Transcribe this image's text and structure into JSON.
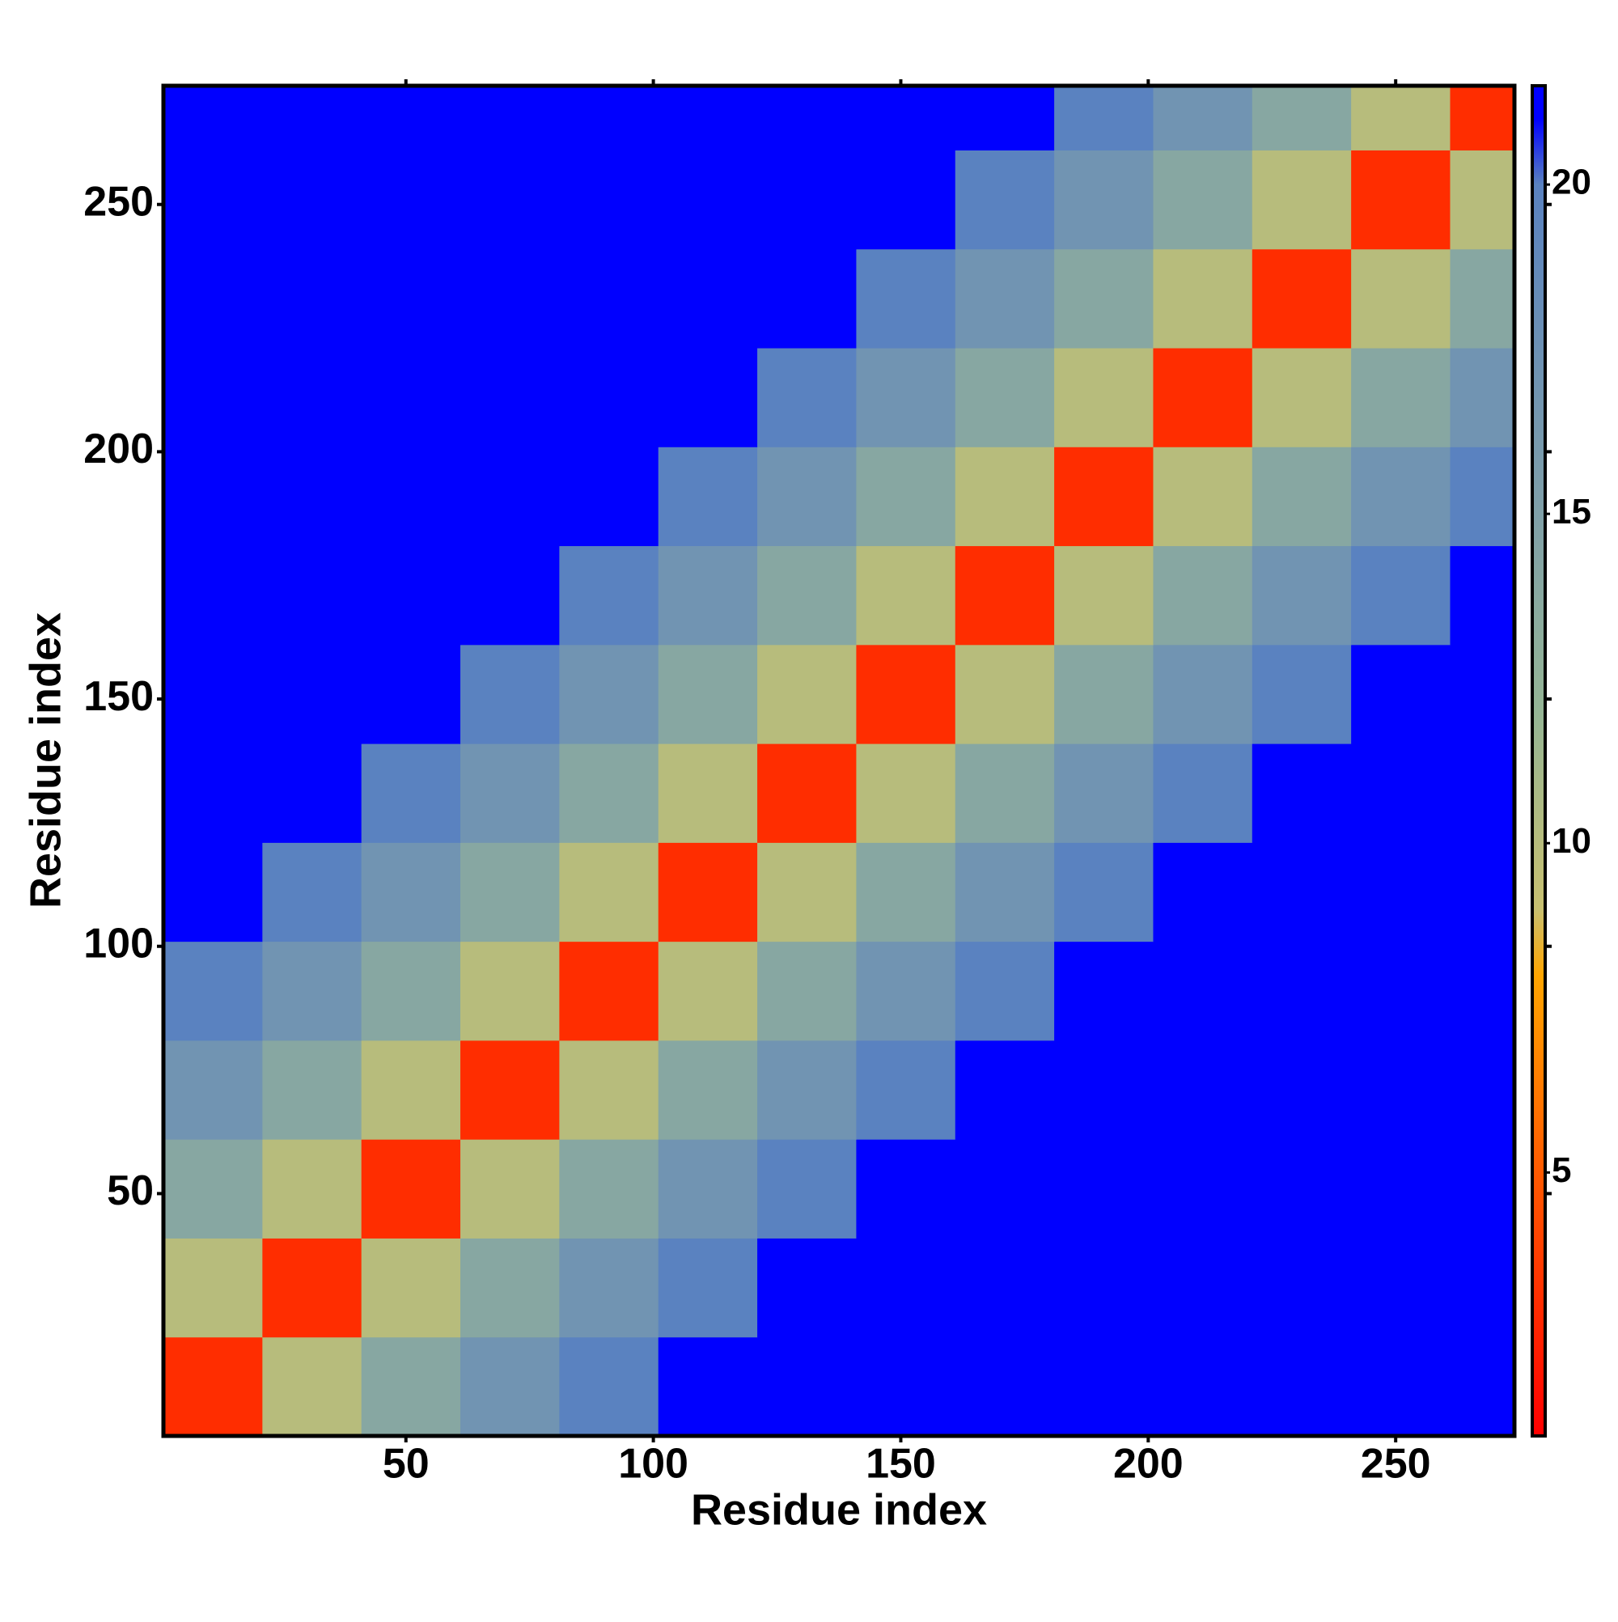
{
  "chart_data": {
    "type": "heatmap",
    "x_label": "Residue index",
    "y_label": "Residue index",
    "xbins": [
      1,
      21,
      41,
      61,
      81,
      101,
      121,
      141,
      161,
      181,
      201,
      221,
      241,
      261,
      274
    ],
    "ybins": [
      1,
      21,
      41,
      61,
      81,
      101,
      121,
      141,
      161,
      181,
      201,
      221,
      241,
      261,
      274
    ],
    "values": [
      [
        3,
        10,
        14,
        17,
        20,
        22,
        22,
        22,
        22,
        22,
        22,
        22,
        22,
        22
      ],
      [
        10,
        3,
        10,
        14,
        17,
        20,
        22,
        22,
        22,
        22,
        22,
        22,
        22,
        22
      ],
      [
        14,
        10,
        3,
        10,
        14,
        17,
        20,
        22,
        22,
        22,
        22,
        22,
        22,
        22
      ],
      [
        17,
        14,
        10,
        3,
        10,
        14,
        17,
        20,
        22,
        22,
        22,
        22,
        22,
        22
      ],
      [
        20,
        17,
        14,
        10,
        3,
        10,
        14,
        17,
        20,
        22,
        22,
        22,
        22,
        22
      ],
      [
        22,
        20,
        17,
        14,
        10,
        3,
        10,
        14,
        17,
        20,
        22,
        22,
        22,
        22
      ],
      [
        22,
        22,
        20,
        17,
        14,
        10,
        3,
        10,
        14,
        17,
        20,
        22,
        22,
        22
      ],
      [
        22,
        22,
        22,
        20,
        17,
        14,
        10,
        3,
        10,
        14,
        17,
        20,
        22,
        22
      ],
      [
        22,
        22,
        22,
        22,
        20,
        17,
        14,
        10,
        3,
        10,
        14,
        17,
        20,
        22
      ],
      [
        22,
        22,
        22,
        22,
        22,
        20,
        17,
        14,
        10,
        3,
        10,
        14,
        17,
        20
      ],
      [
        22,
        22,
        22,
        22,
        22,
        22,
        20,
        17,
        14,
        10,
        3,
        10,
        14,
        17
      ],
      [
        22,
        22,
        22,
        22,
        22,
        22,
        22,
        20,
        17,
        14,
        10,
        3,
        10,
        14
      ],
      [
        22,
        22,
        22,
        22,
        22,
        22,
        22,
        22,
        20,
        17,
        14,
        10,
        3,
        10
      ],
      [
        22,
        22,
        22,
        22,
        22,
        22,
        22,
        22,
        22,
        20,
        17,
        14,
        10,
        3
      ]
    ],
    "xlim": [
      1,
      274
    ],
    "ylim": [
      1,
      274
    ],
    "xticks": [
      50,
      100,
      150,
      200,
      250
    ],
    "yticks": [
      50,
      100,
      150,
      200,
      250
    ],
    "colorbar_lim": [
      1,
      21.5
    ],
    "colorbar_ticks": [
      5,
      10,
      15,
      20
    ],
    "colorscale": [
      [
        1,
        "#ff0000"
      ],
      [
        5,
        "#ff5a00"
      ],
      [
        8,
        "#ffa500"
      ],
      [
        9,
        "#c8c070"
      ],
      [
        12,
        "#95b595"
      ],
      [
        15,
        "#80a0a8"
      ],
      [
        20,
        "#5a82c0"
      ],
      [
        21,
        "#0000ff"
      ]
    ]
  }
}
